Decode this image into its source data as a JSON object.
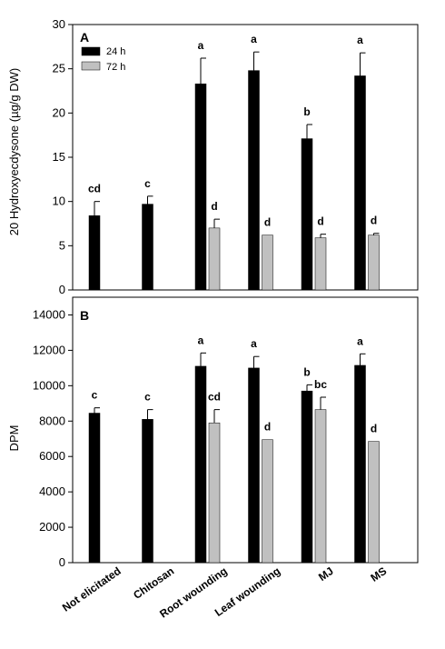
{
  "colors": {
    "series_24h": "#000000",
    "series_72h": "#c0c0c0",
    "axis": "#000000"
  },
  "chart_data": [
    {
      "type": "bar",
      "panel_label": "A",
      "ylabel": "20 Hydroxyecdysone (µg/g DW)",
      "ylim": [
        0,
        30
      ],
      "yticks": [
        "0",
        "5",
        "10",
        "15",
        "20",
        "25",
        "30"
      ],
      "legend": {
        "position": "top-left",
        "entries": [
          "24 h",
          "72 h"
        ]
      },
      "categories": [
        "Not elicitated",
        "Chitosan",
        "Root wounding",
        "Leaf wounding",
        "MJ",
        "MS"
      ],
      "series": [
        {
          "name": "24 h",
          "values": [
            8.4,
            9.7,
            23.3,
            24.8,
            17.1,
            24.2
          ],
          "errors": [
            1.6,
            0.9,
            2.9,
            2.1,
            1.6,
            2.6
          ],
          "labels": [
            "cd",
            "c",
            "a",
            "a",
            "b",
            "a"
          ]
        },
        {
          "name": "72 h",
          "values": [
            null,
            null,
            7.0,
            6.2,
            5.9,
            6.2
          ],
          "errors": [
            null,
            null,
            1.0,
            0,
            0.4,
            0.2
          ],
          "labels": [
            "",
            "",
            "d",
            "d",
            "d",
            "d"
          ]
        }
      ]
    },
    {
      "type": "bar",
      "panel_label": "B",
      "ylabel": "DPM",
      "ylim": [
        0,
        15000
      ],
      "yticks": [
        "0",
        "2000",
        "4000",
        "6000",
        "8000",
        "10000",
        "12000",
        "14000"
      ],
      "categories": [
        "Not elicitated",
        "Chitosan",
        "Root wounding",
        "Leaf wounding",
        "MJ",
        "MS"
      ],
      "series": [
        {
          "name": "24 h",
          "values": [
            8450,
            8100,
            11100,
            11000,
            9700,
            11150
          ],
          "errors": [
            300,
            550,
            750,
            650,
            350,
            650
          ],
          "labels": [
            "c",
            "c",
            "a",
            "a",
            "b",
            "a"
          ]
        },
        {
          "name": "72 h",
          "values": [
            null,
            null,
            7900,
            6950,
            8650,
            6850
          ],
          "errors": [
            null,
            null,
            750,
            0,
            700,
            0
          ],
          "labels": [
            "",
            "",
            "cd",
            "d",
            "bc",
            "d"
          ]
        }
      ]
    }
  ]
}
